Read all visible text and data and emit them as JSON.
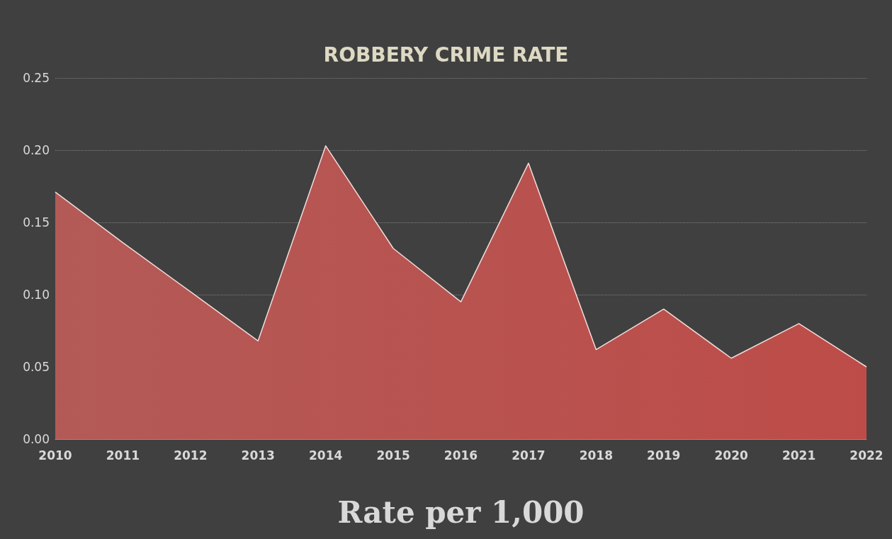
{
  "chart_data": {
    "type": "area",
    "title": "ROBBERY CRIME RATE",
    "xlabel": "Rate per 1,000",
    "categories": [
      "2010",
      "2011",
      "2012",
      "2013",
      "2014",
      "2015",
      "2016",
      "2017",
      "2018",
      "2019",
      "2020",
      "2021",
      "2022"
    ],
    "series": [
      {
        "color": "#a94441",
        "values": [
          0.171,
          0.136,
          0.102,
          0.068,
          0.203,
          0.132,
          0.095,
          0.191,
          0.062,
          0.09,
          0.056,
          0.08,
          0.05
        ]
      }
    ],
    "ylim": [
      0,
      0.25
    ],
    "yticks": [
      {
        "value": 0,
        "label": "0.00"
      },
      {
        "value": 0.05,
        "label": "0.05"
      },
      {
        "value": 0.1,
        "label": "0.10"
      },
      {
        "value": 0.15,
        "label": "0.15"
      },
      {
        "value": 0.2,
        "label": "0.20"
      },
      {
        "value": 0.25,
        "label": "0.25"
      }
    ],
    "grid": "y",
    "marker": "none",
    "line_style": "solid"
  }
}
